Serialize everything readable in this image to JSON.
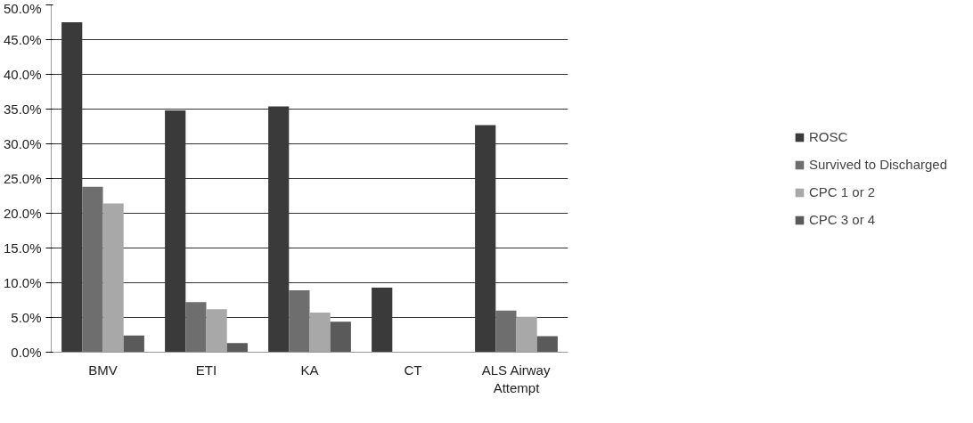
{
  "chart_data": {
    "type": "bar",
    "categories": [
      "BMV",
      "ETI",
      "KA",
      "CT",
      "ALS Airway Attempt"
    ],
    "series": [
      {
        "name": "ROSC",
        "color": "#3a3a3a",
        "values": [
          47.5,
          34.8,
          35.4,
          9.3,
          32.7
        ]
      },
      {
        "name": "Survived to Discharged",
        "color": "#6e6e6e",
        "values": [
          23.8,
          7.2,
          8.9,
          0,
          6.0
        ]
      },
      {
        "name": "CPC 1 or 2",
        "color": "#a8a8a8",
        "values": [
          21.4,
          6.2,
          5.7,
          0,
          5.1
        ]
      },
      {
        "name": "CPC 3 or 4",
        "color": "#5a5a5a",
        "values": [
          2.4,
          1.3,
          4.4,
          0,
          2.3
        ]
      }
    ],
    "ylim": [
      0,
      50
    ],
    "yticks": [
      {
        "value": 0,
        "label": "0.0%"
      },
      {
        "value": 5,
        "label": "5.0%"
      },
      {
        "value": 10,
        "label": "10.0%"
      },
      {
        "value": 15,
        "label": "15.0%"
      },
      {
        "value": 20,
        "label": "20.0%"
      },
      {
        "value": 25,
        "label": "25.0%"
      },
      {
        "value": 30,
        "label": "30.0%"
      },
      {
        "value": 35,
        "label": "35.0%"
      },
      {
        "value": 40,
        "label": "40.0%"
      },
      {
        "value": 45,
        "label": "45.0%"
      },
      {
        "value": 50,
        "label": "50.0%"
      }
    ],
    "grid": "y",
    "legend": "right"
  }
}
